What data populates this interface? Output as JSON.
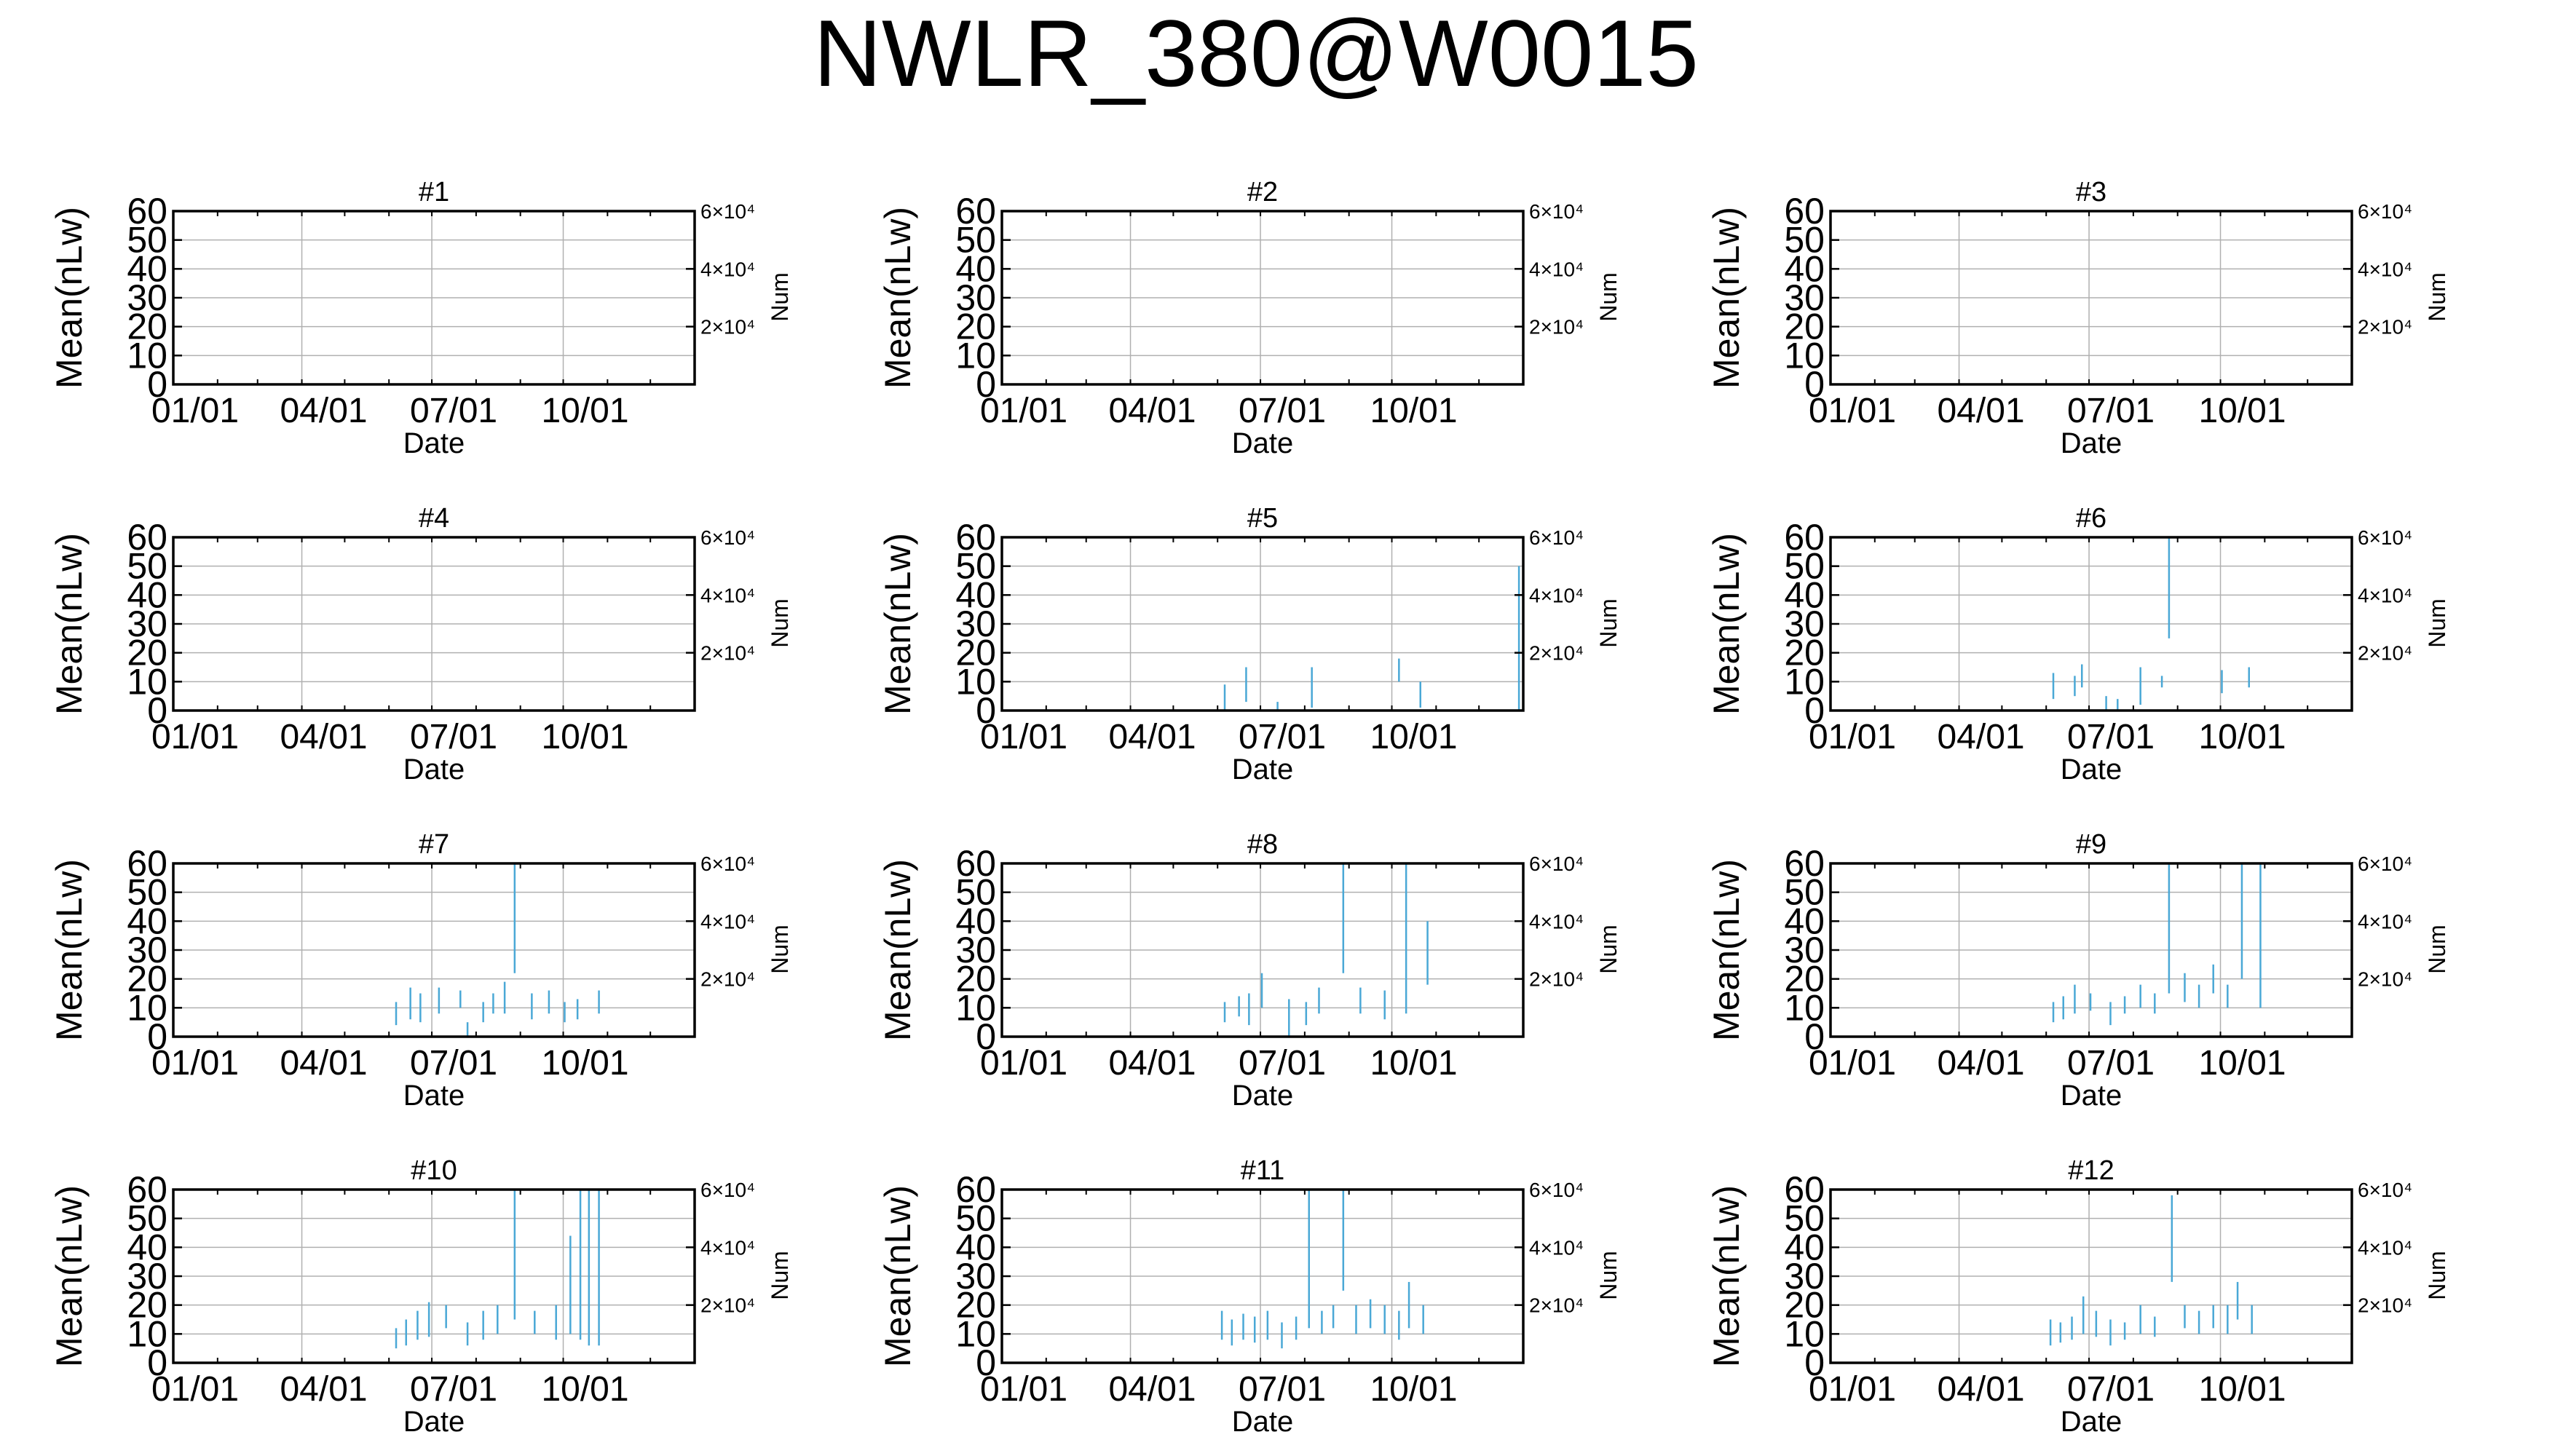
{
  "figure": {
    "title": "NWLR_380@W0015"
  },
  "style": {
    "bar_color": "#4aa8d6",
    "axis_color": "#000000",
    "grid_color": "#b0b0b0"
  },
  "chart_data": [
    {
      "type": "bar",
      "title": "#1",
      "xlabel": "Date",
      "ylabel": "Mean(nLw)",
      "y2label": "Num",
      "ylim": [
        0,
        60
      ],
      "yticks": [
        0,
        10,
        20,
        30,
        40,
        50,
        60
      ],
      "y2ticks": [
        "2×10⁴",
        "4×10⁴",
        "6×10⁴"
      ],
      "xticks": [
        "01/01",
        "04/01",
        "07/01",
        "10/01"
      ],
      "grid": true,
      "series": []
    },
    {
      "type": "bar",
      "title": "#2",
      "xlabel": "Date",
      "ylabel": "Mean(nLw)",
      "y2label": "Num",
      "ylim": [
        0,
        60
      ],
      "yticks": [
        0,
        10,
        20,
        30,
        40,
        50,
        60
      ],
      "y2ticks": [
        "2×10⁴",
        "4×10⁴",
        "6×10⁴"
      ],
      "xticks": [
        "01/01",
        "04/01",
        "07/01",
        "10/01"
      ],
      "grid": true,
      "series": []
    },
    {
      "type": "bar",
      "title": "#3",
      "xlabel": "Date",
      "ylabel": "Mean(nLw)",
      "y2label": "Num",
      "ylim": [
        0,
        60
      ],
      "yticks": [
        0,
        10,
        20,
        30,
        40,
        50,
        60
      ],
      "y2ticks": [
        "2×10⁴",
        "4×10⁴",
        "6×10⁴"
      ],
      "xticks": [
        "01/01",
        "04/01",
        "07/01",
        "10/01"
      ],
      "grid": true,
      "series": []
    },
    {
      "type": "bar",
      "title": "#4",
      "xlabel": "Date",
      "ylabel": "Mean(nLw)",
      "y2label": "Num",
      "ylim": [
        0,
        60
      ],
      "yticks": [
        0,
        10,
        20,
        30,
        40,
        50,
        60
      ],
      "y2ticks": [
        "2×10⁴",
        "4×10⁴",
        "6×10⁴"
      ],
      "xticks": [
        "01/01",
        "04/01",
        "07/01",
        "10/01"
      ],
      "grid": true,
      "series": []
    },
    {
      "type": "bar",
      "title": "#5",
      "xlabel": "Date",
      "ylabel": "Mean(nLw)",
      "y2label": "Num",
      "ylim": [
        0,
        60
      ],
      "yticks": [
        0,
        10,
        20,
        30,
        40,
        50,
        60
      ],
      "y2ticks": [
        "2×10⁴",
        "4×10⁴",
        "6×10⁴"
      ],
      "xticks": [
        "01/01",
        "04/01",
        "07/01",
        "10/01"
      ],
      "grid": true,
      "series": [
        {
          "x": "06/05",
          "y0": 0,
          "y1": 9
        },
        {
          "x": "06/20",
          "y0": 3,
          "y1": 15
        },
        {
          "x": "07/12",
          "y0": 0,
          "y1": 3
        },
        {
          "x": "08/05",
          "y0": 1,
          "y1": 15
        },
        {
          "x": "10/05",
          "y0": 10,
          "y1": 18
        },
        {
          "x": "10/20",
          "y0": 1,
          "y1": 10
        },
        {
          "x": "12/28",
          "y0": 0,
          "y1": 50
        }
      ]
    },
    {
      "type": "bar",
      "title": "#6",
      "xlabel": "Date",
      "ylabel": "Mean(nLw)",
      "y2label": "Num",
      "ylim": [
        0,
        60
      ],
      "yticks": [
        0,
        10,
        20,
        30,
        40,
        50,
        60
      ],
      "y2ticks": [
        "2×10⁴",
        "4×10⁴",
        "6×10⁴"
      ],
      "xticks": [
        "01/01",
        "04/01",
        "07/01",
        "10/01"
      ],
      "grid": true,
      "series": [
        {
          "x": "06/05",
          "y0": 4,
          "y1": 13
        },
        {
          "x": "06/20",
          "y0": 5,
          "y1": 12
        },
        {
          "x": "06/25",
          "y0": 8,
          "y1": 16
        },
        {
          "x": "07/12",
          "y0": 0,
          "y1": 5
        },
        {
          "x": "07/20",
          "y0": 0,
          "y1": 4
        },
        {
          "x": "08/05",
          "y0": 2,
          "y1": 15
        },
        {
          "x": "08/20",
          "y0": 8,
          "y1": 12
        },
        {
          "x": "08/25",
          "y0": 25,
          "y1": 60
        },
        {
          "x": "10/01",
          "y0": 6,
          "y1": 14
        },
        {
          "x": "10/20",
          "y0": 8,
          "y1": 15
        }
      ]
    },
    {
      "type": "bar",
      "title": "#7",
      "xlabel": "Date",
      "ylabel": "Mean(nLw)",
      "y2label": "Num",
      "ylim": [
        0,
        60
      ],
      "yticks": [
        0,
        10,
        20,
        30,
        40,
        50,
        60
      ],
      "y2ticks": [
        "2×10⁴",
        "4×10⁴",
        "6×10⁴"
      ],
      "xticks": [
        "01/01",
        "04/01",
        "07/01",
        "10/01"
      ],
      "grid": true,
      "series": [
        {
          "x": "06/05",
          "y0": 4,
          "y1": 12
        },
        {
          "x": "06/15",
          "y0": 6,
          "y1": 17
        },
        {
          "x": "06/22",
          "y0": 5,
          "y1": 15
        },
        {
          "x": "07/05",
          "y0": 8,
          "y1": 17
        },
        {
          "x": "07/20",
          "y0": 10,
          "y1": 16
        },
        {
          "x": "07/25",
          "y0": 0,
          "y1": 5
        },
        {
          "x": "08/05",
          "y0": 5,
          "y1": 12
        },
        {
          "x": "08/12",
          "y0": 8,
          "y1": 15
        },
        {
          "x": "08/20",
          "y0": 8,
          "y1": 19
        },
        {
          "x": "08/27",
          "y0": 22,
          "y1": 60
        },
        {
          "x": "09/08",
          "y0": 6,
          "y1": 15
        },
        {
          "x": "09/20",
          "y0": 8,
          "y1": 16
        },
        {
          "x": "10/01",
          "y0": 5,
          "y1": 12
        },
        {
          "x": "10/10",
          "y0": 6,
          "y1": 13
        },
        {
          "x": "10/25",
          "y0": 8,
          "y1": 16
        }
      ]
    },
    {
      "type": "bar",
      "title": "#8",
      "xlabel": "Date",
      "ylabel": "Mean(nLw)",
      "y2label": "Num",
      "ylim": [
        0,
        60
      ],
      "yticks": [
        0,
        10,
        20,
        30,
        40,
        50,
        60
      ],
      "y2ticks": [
        "2×10⁴",
        "4×10⁴",
        "6×10⁴"
      ],
      "xticks": [
        "01/01",
        "04/01",
        "07/01",
        "10/01"
      ],
      "grid": true,
      "series": [
        {
          "x": "06/05",
          "y0": 5,
          "y1": 12
        },
        {
          "x": "06/15",
          "y0": 7,
          "y1": 14
        },
        {
          "x": "06/22",
          "y0": 4,
          "y1": 15
        },
        {
          "x": "07/01",
          "y0": 10,
          "y1": 22
        },
        {
          "x": "07/20",
          "y0": 0,
          "y1": 13
        },
        {
          "x": "08/01",
          "y0": 4,
          "y1": 12
        },
        {
          "x": "08/10",
          "y0": 8,
          "y1": 17
        },
        {
          "x": "08/27",
          "y0": 22,
          "y1": 60
        },
        {
          "x": "09/08",
          "y0": 8,
          "y1": 17
        },
        {
          "x": "09/25",
          "y0": 6,
          "y1": 16
        },
        {
          "x": "10/10",
          "y0": 8,
          "y1": 60
        },
        {
          "x": "10/25",
          "y0": 18,
          "y1": 40
        }
      ]
    },
    {
      "type": "bar",
      "title": "#9",
      "xlabel": "Date",
      "ylabel": "Mean(nLw)",
      "y2label": "Num",
      "ylim": [
        0,
        60
      ],
      "yticks": [
        0,
        10,
        20,
        30,
        40,
        50,
        60
      ],
      "y2ticks": [
        "2×10⁴",
        "4×10⁴",
        "6×10⁴"
      ],
      "xticks": [
        "01/01",
        "04/01",
        "07/01",
        "10/01"
      ],
      "grid": true,
      "series": [
        {
          "x": "06/05",
          "y0": 5,
          "y1": 12
        },
        {
          "x": "06/12",
          "y0": 6,
          "y1": 14
        },
        {
          "x": "06/20",
          "y0": 8,
          "y1": 18
        },
        {
          "x": "07/01",
          "y0": 9,
          "y1": 15
        },
        {
          "x": "07/15",
          "y0": 4,
          "y1": 12
        },
        {
          "x": "07/25",
          "y0": 8,
          "y1": 14
        },
        {
          "x": "08/05",
          "y0": 10,
          "y1": 18
        },
        {
          "x": "08/15",
          "y0": 8,
          "y1": 15
        },
        {
          "x": "08/25",
          "y0": 15,
          "y1": 60
        },
        {
          "x": "09/05",
          "y0": 12,
          "y1": 22
        },
        {
          "x": "09/15",
          "y0": 10,
          "y1": 18
        },
        {
          "x": "09/25",
          "y0": 15,
          "y1": 25
        },
        {
          "x": "10/05",
          "y0": 10,
          "y1": 18
        },
        {
          "x": "10/15",
          "y0": 20,
          "y1": 60
        },
        {
          "x": "10/28",
          "y0": 10,
          "y1": 60
        }
      ]
    },
    {
      "type": "bar",
      "title": "#10",
      "xlabel": "Date",
      "ylabel": "Mean(nLw)",
      "y2label": "Num",
      "ylim": [
        0,
        60
      ],
      "yticks": [
        0,
        10,
        20,
        30,
        40,
        50,
        60
      ],
      "y2ticks": [
        "2×10⁴",
        "4×10⁴",
        "6×10⁴"
      ],
      "xticks": [
        "01/01",
        "04/01",
        "07/01",
        "10/01"
      ],
      "grid": true,
      "series": [
        {
          "x": "06/05",
          "y0": 5,
          "y1": 12
        },
        {
          "x": "06/12",
          "y0": 6,
          "y1": 15
        },
        {
          "x": "06/20",
          "y0": 8,
          "y1": 18
        },
        {
          "x": "06/28",
          "y0": 9,
          "y1": 21
        },
        {
          "x": "07/10",
          "y0": 12,
          "y1": 20
        },
        {
          "x": "07/25",
          "y0": 6,
          "y1": 14
        },
        {
          "x": "08/05",
          "y0": 8,
          "y1": 18
        },
        {
          "x": "08/15",
          "y0": 10,
          "y1": 20
        },
        {
          "x": "08/27",
          "y0": 15,
          "y1": 60
        },
        {
          "x": "09/10",
          "y0": 10,
          "y1": 18
        },
        {
          "x": "09/25",
          "y0": 8,
          "y1": 20
        },
        {
          "x": "10/05",
          "y0": 10,
          "y1": 44
        },
        {
          "x": "10/12",
          "y0": 8,
          "y1": 60
        },
        {
          "x": "10/18",
          "y0": 6,
          "y1": 60
        },
        {
          "x": "10/25",
          "y0": 6,
          "y1": 60
        }
      ]
    },
    {
      "type": "bar",
      "title": "#11",
      "xlabel": "Date",
      "ylabel": "Mean(nLw)",
      "y2label": "Num",
      "ylim": [
        0,
        60
      ],
      "yticks": [
        0,
        10,
        20,
        30,
        40,
        50,
        60
      ],
      "y2ticks": [
        "2×10⁴",
        "4×10⁴",
        "6×10⁴"
      ],
      "xticks": [
        "01/01",
        "04/01",
        "07/01",
        "10/01"
      ],
      "grid": true,
      "series": [
        {
          "x": "06/03",
          "y0": 8,
          "y1": 18
        },
        {
          "x": "06/10",
          "y0": 6,
          "y1": 15
        },
        {
          "x": "06/18",
          "y0": 8,
          "y1": 17
        },
        {
          "x": "06/26",
          "y0": 7,
          "y1": 16
        },
        {
          "x": "07/05",
          "y0": 8,
          "y1": 18
        },
        {
          "x": "07/15",
          "y0": 5,
          "y1": 14
        },
        {
          "x": "07/25",
          "y0": 8,
          "y1": 16
        },
        {
          "x": "08/03",
          "y0": 12,
          "y1": 60
        },
        {
          "x": "08/12",
          "y0": 10,
          "y1": 18
        },
        {
          "x": "08/20",
          "y0": 12,
          "y1": 20
        },
        {
          "x": "08/27",
          "y0": 25,
          "y1": 60
        },
        {
          "x": "09/05",
          "y0": 10,
          "y1": 20
        },
        {
          "x": "09/15",
          "y0": 12,
          "y1": 22
        },
        {
          "x": "09/25",
          "y0": 10,
          "y1": 20
        },
        {
          "x": "10/05",
          "y0": 8,
          "y1": 18
        },
        {
          "x": "10/12",
          "y0": 12,
          "y1": 28
        },
        {
          "x": "10/22",
          "y0": 10,
          "y1": 20
        }
      ]
    },
    {
      "type": "bar",
      "title": "#12",
      "xlabel": "Date",
      "ylabel": "Mean(nLw)",
      "y2label": "Num",
      "ylim": [
        0,
        60
      ],
      "yticks": [
        0,
        10,
        20,
        30,
        40,
        50,
        60
      ],
      "y2ticks": [
        "2×10⁴",
        "4×10⁴",
        "6×10⁴"
      ],
      "xticks": [
        "01/01",
        "04/01",
        "07/01",
        "10/01"
      ],
      "grid": true,
      "series": [
        {
          "x": "06/03",
          "y0": 6,
          "y1": 15
        },
        {
          "x": "06/10",
          "y0": 7,
          "y1": 14
        },
        {
          "x": "06/18",
          "y0": 8,
          "y1": 16
        },
        {
          "x": "06/26",
          "y0": 10,
          "y1": 23
        },
        {
          "x": "07/05",
          "y0": 9,
          "y1": 18
        },
        {
          "x": "07/15",
          "y0": 6,
          "y1": 15
        },
        {
          "x": "07/25",
          "y0": 8,
          "y1": 14
        },
        {
          "x": "08/05",
          "y0": 10,
          "y1": 20
        },
        {
          "x": "08/15",
          "y0": 9,
          "y1": 16
        },
        {
          "x": "08/27",
          "y0": 28,
          "y1": 58
        },
        {
          "x": "09/05",
          "y0": 12,
          "y1": 20
        },
        {
          "x": "09/15",
          "y0": 10,
          "y1": 18
        },
        {
          "x": "09/25",
          "y0": 12,
          "y1": 20
        },
        {
          "x": "10/05",
          "y0": 10,
          "y1": 20
        },
        {
          "x": "10/12",
          "y0": 15,
          "y1": 28
        },
        {
          "x": "10/22",
          "y0": 10,
          "y1": 20
        }
      ]
    }
  ]
}
